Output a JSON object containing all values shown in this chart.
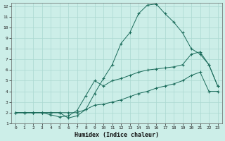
{
  "xlabel": "Humidex (Indice chaleur)",
  "xlim": [
    -0.5,
    23.5
  ],
  "ylim": [
    1,
    12.3
  ],
  "xticks": [
    0,
    1,
    2,
    3,
    4,
    5,
    6,
    7,
    8,
    9,
    10,
    11,
    12,
    13,
    14,
    15,
    16,
    17,
    18,
    19,
    20,
    21,
    22,
    23
  ],
  "yticks": [
    1,
    2,
    3,
    4,
    5,
    6,
    7,
    8,
    9,
    10,
    11,
    12
  ],
  "bg_color": "#cceee8",
  "line_color": "#1a6b5a",
  "grid_color": "#aad8d0",
  "line1_x": [
    0,
    1,
    2,
    3,
    4,
    5,
    6,
    7,
    8,
    9,
    10,
    11,
    12,
    13,
    14,
    15,
    16,
    17,
    18,
    19,
    20,
    21,
    22,
    23
  ],
  "line1_y": [
    2,
    2,
    2,
    2,
    2,
    2,
    1.5,
    1.7,
    2.3,
    3.8,
    5.2,
    6.5,
    8.5,
    9.5,
    11.3,
    12.1,
    12.2,
    11.3,
    10.5,
    9.5,
    8.0,
    7.5,
    6.5,
    4.5
  ],
  "line2_x": [
    0,
    1,
    2,
    3,
    4,
    5,
    6,
    7,
    8,
    9,
    10,
    11,
    12,
    13,
    14,
    15,
    16,
    17,
    18,
    19,
    20,
    21,
    22,
    23
  ],
  "line2_y": [
    2,
    2,
    2,
    2,
    1.8,
    1.6,
    1.7,
    2.2,
    3.6,
    5.0,
    4.5,
    5.0,
    5.2,
    5.5,
    5.8,
    6.0,
    6.1,
    6.2,
    6.3,
    6.5,
    7.5,
    7.7,
    6.5,
    4.5
  ],
  "line3_x": [
    0,
    1,
    2,
    3,
    4,
    5,
    6,
    7,
    8,
    9,
    10,
    11,
    12,
    13,
    14,
    15,
    16,
    17,
    18,
    19,
    20,
    21,
    22,
    23
  ],
  "line3_y": [
    2,
    2,
    2,
    2,
    2,
    2,
    2,
    2,
    2.3,
    2.7,
    2.8,
    3.0,
    3.2,
    3.5,
    3.8,
    4.0,
    4.3,
    4.5,
    4.7,
    5.0,
    5.5,
    5.8,
    4.0,
    4.0
  ]
}
